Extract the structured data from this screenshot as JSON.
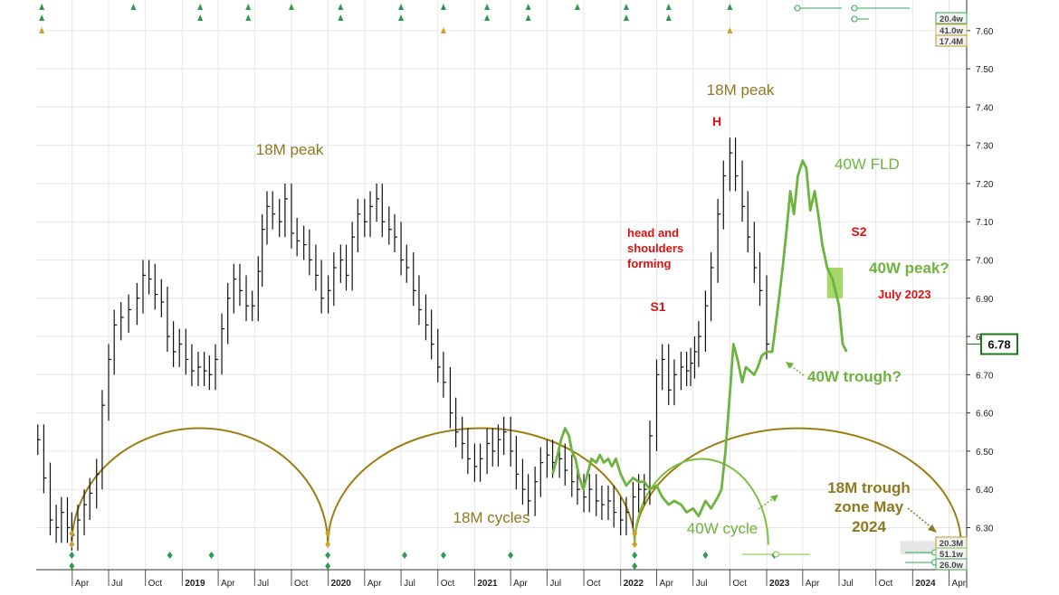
{
  "chart_data": {
    "type": "line",
    "y_axis": {
      "ticks": [
        6.3,
        6.4,
        6.5,
        6.6,
        6.7,
        6.8,
        6.9,
        7.0,
        7.1,
        7.2,
        7.3,
        7.4,
        7.5,
        7.6
      ],
      "tick_labels": [
        "6.30",
        "6.40",
        "6.50",
        "6.60",
        "6.70",
        "6.80",
        "6.90",
        "7.00",
        "7.10",
        "7.20",
        "7.30",
        "7.40",
        "7.50",
        "7.60"
      ],
      "ylim": [
        6.19,
        7.68
      ],
      "last_price_label": "6.78",
      "last_price": 6.78
    },
    "x_axis": {
      "xlim": [
        "2018-01-01",
        "2024-05-15"
      ],
      "ticks": [
        {
          "date": "2018-04-01",
          "label": "Apr"
        },
        {
          "date": "2018-07-01",
          "label": "Jul"
        },
        {
          "date": "2018-10-01",
          "label": "Oct"
        },
        {
          "date": "2019-01-01",
          "label": "2019"
        },
        {
          "date": "2019-04-01",
          "label": "Apr"
        },
        {
          "date": "2019-07-01",
          "label": "Jul"
        },
        {
          "date": "2019-10-01",
          "label": "Oct"
        },
        {
          "date": "2020-01-01",
          "label": "2020"
        },
        {
          "date": "2020-04-01",
          "label": "Apr"
        },
        {
          "date": "2020-07-01",
          "label": "Jul"
        },
        {
          "date": "2020-10-01",
          "label": "Oct"
        },
        {
          "date": "2021-01-01",
          "label": "2021"
        },
        {
          "date": "2021-04-01",
          "label": "Apr"
        },
        {
          "date": "2021-07-01",
          "label": "Jul"
        },
        {
          "date": "2021-10-01",
          "label": "Oct"
        },
        {
          "date": "2022-01-01",
          "label": "2022"
        },
        {
          "date": "2022-04-01",
          "label": "Apr"
        },
        {
          "date": "2022-07-01",
          "label": "Jul"
        },
        {
          "date": "2022-10-01",
          "label": "Oct"
        },
        {
          "date": "2023-01-01",
          "label": "2023"
        },
        {
          "date": "2023-04-01",
          "label": "Apr"
        },
        {
          "date": "2023-07-01",
          "label": "Jul"
        },
        {
          "date": "2023-10-01",
          "label": "Oct"
        },
        {
          "date": "2024-01-01",
          "label": "2024"
        },
        {
          "date": "2024-04-01",
          "label": "Apr"
        }
      ]
    },
    "series": [
      {
        "kind": "price_bars",
        "color": "#111111",
        "points": [
          [
            "2018-01-05",
            6.53
          ],
          [
            "2018-01-20",
            6.43
          ],
          [
            "2018-02-05",
            6.32
          ],
          [
            "2018-02-20",
            6.3
          ],
          [
            "2018-03-05",
            6.34
          ],
          [
            "2018-03-20",
            6.3
          ],
          [
            "2018-03-31",
            6.28
          ],
          [
            "2018-04-15",
            6.32
          ],
          [
            "2018-05-01",
            6.36
          ],
          [
            "2018-05-15",
            6.39
          ],
          [
            "2018-06-01",
            6.44
          ],
          [
            "2018-06-15",
            6.62
          ],
          [
            "2018-07-01",
            6.74
          ],
          [
            "2018-07-15",
            6.83
          ],
          [
            "2018-08-01",
            6.85
          ],
          [
            "2018-08-20",
            6.87
          ],
          [
            "2018-09-10",
            6.9
          ],
          [
            "2018-09-25",
            6.96
          ],
          [
            "2018-10-10",
            6.95
          ],
          [
            "2018-10-25",
            6.91
          ],
          [
            "2018-11-10",
            6.89
          ],
          [
            "2018-11-25",
            6.8
          ],
          [
            "2018-12-10",
            6.76
          ],
          [
            "2018-12-25",
            6.78
          ],
          [
            "2019-01-10",
            6.74
          ],
          [
            "2019-01-25",
            6.71
          ],
          [
            "2019-02-10",
            6.72
          ],
          [
            "2019-02-25",
            6.71
          ],
          [
            "2019-03-10",
            6.7
          ],
          [
            "2019-03-25",
            6.74
          ],
          [
            "2019-04-10",
            6.82
          ],
          [
            "2019-04-25",
            6.9
          ],
          [
            "2019-05-10",
            6.95
          ],
          [
            "2019-05-25",
            6.92
          ],
          [
            "2019-06-10",
            6.88
          ],
          [
            "2019-06-25",
            6.88
          ],
          [
            "2019-07-10",
            6.97
          ],
          [
            "2019-07-20",
            7.08
          ],
          [
            "2019-08-01",
            7.14
          ],
          [
            "2019-08-15",
            7.12
          ],
          [
            "2019-09-01",
            7.1
          ],
          [
            "2019-09-15",
            7.16
          ],
          [
            "2019-10-01",
            7.07
          ],
          [
            "2019-10-15",
            7.05
          ],
          [
            "2019-11-01",
            7.04
          ],
          [
            "2019-11-15",
            7.0
          ],
          [
            "2019-12-01",
            6.96
          ],
          [
            "2019-12-15",
            6.9
          ],
          [
            "2020-01-01",
            6.92
          ],
          [
            "2020-01-15",
            6.98
          ],
          [
            "2020-02-01",
            7.0
          ],
          [
            "2020-02-15",
            6.96
          ],
          [
            "2020-03-01",
            7.06
          ],
          [
            "2020-03-15",
            7.12
          ],
          [
            "2020-04-01",
            7.1
          ],
          [
            "2020-04-15",
            7.14
          ],
          [
            "2020-05-01",
            7.16
          ],
          [
            "2020-05-15",
            7.1
          ],
          [
            "2020-06-01",
            7.08
          ],
          [
            "2020-06-15",
            7.06
          ],
          [
            "2020-07-01",
            7.0
          ],
          [
            "2020-07-15",
            6.98
          ],
          [
            "2020-08-01",
            6.92
          ],
          [
            "2020-08-15",
            6.87
          ],
          [
            "2020-09-01",
            6.83
          ],
          [
            "2020-09-15",
            6.78
          ],
          [
            "2020-10-01",
            6.72
          ],
          [
            "2020-10-15",
            6.68
          ],
          [
            "2020-11-01",
            6.6
          ],
          [
            "2020-11-15",
            6.55
          ],
          [
            "2020-12-01",
            6.52
          ],
          [
            "2020-12-15",
            6.48
          ],
          [
            "2021-01-01",
            6.46
          ],
          [
            "2021-01-15",
            6.48
          ],
          [
            "2021-02-01",
            6.52
          ],
          [
            "2021-02-15",
            6.5
          ],
          [
            "2021-03-01",
            6.53
          ],
          [
            "2021-03-15",
            6.55
          ],
          [
            "2021-04-01",
            6.5
          ],
          [
            "2021-04-15",
            6.44
          ],
          [
            "2021-05-01",
            6.4
          ],
          [
            "2021-05-15",
            6.37
          ],
          [
            "2021-06-01",
            6.42
          ],
          [
            "2021-06-15",
            6.47
          ],
          [
            "2021-07-01",
            6.49
          ],
          [
            "2021-07-15",
            6.47
          ],
          [
            "2021-08-01",
            6.48
          ],
          [
            "2021-08-15",
            6.45
          ],
          [
            "2021-09-01",
            6.42
          ],
          [
            "2021-09-15",
            6.4
          ],
          [
            "2021-10-01",
            6.38
          ],
          [
            "2021-10-15",
            6.4
          ],
          [
            "2021-11-01",
            6.37
          ],
          [
            "2021-11-15",
            6.36
          ],
          [
            "2021-12-01",
            6.37
          ],
          [
            "2021-12-15",
            6.34
          ],
          [
            "2022-01-01",
            6.32
          ],
          [
            "2022-01-15",
            6.34
          ],
          [
            "2022-02-01",
            6.38
          ],
          [
            "2022-02-15",
            6.4
          ],
          [
            "2022-03-01",
            6.4
          ],
          [
            "2022-03-15",
            6.54
          ],
          [
            "2022-04-01",
            6.7
          ],
          [
            "2022-04-15",
            6.74
          ],
          [
            "2022-05-01",
            6.66
          ],
          [
            "2022-05-15",
            6.7
          ],
          [
            "2022-06-01",
            6.72
          ],
          [
            "2022-06-15",
            6.71
          ],
          [
            "2022-06-25",
            6.73
          ],
          [
            "2022-07-05",
            6.76
          ],
          [
            "2022-07-15",
            6.8
          ],
          [
            "2022-08-01",
            6.88
          ],
          [
            "2022-08-15",
            6.98
          ],
          [
            "2022-09-01",
            7.12
          ],
          [
            "2022-09-15",
            7.22
          ],
          [
            "2022-10-01",
            7.28
          ],
          [
            "2022-10-15",
            7.22
          ],
          [
            "2022-11-01",
            7.14
          ],
          [
            "2022-11-15",
            7.06
          ],
          [
            "2022-12-01",
            6.98
          ],
          [
            "2022-12-15",
            6.92
          ],
          [
            "2023-01-01",
            6.78
          ]
        ]
      },
      {
        "kind": "line",
        "name": "40W FLD",
        "color": "#6db33f",
        "points": [
          [
            "2021-07-15",
            6.44
          ],
          [
            "2021-07-25",
            6.48
          ],
          [
            "2021-08-05",
            6.53
          ],
          [
            "2021-08-15",
            6.56
          ],
          [
            "2021-08-25",
            6.54
          ],
          [
            "2021-09-01",
            6.5
          ],
          [
            "2021-09-10",
            6.48
          ],
          [
            "2021-09-20",
            6.43
          ],
          [
            "2021-09-30",
            6.4
          ],
          [
            "2021-10-10",
            6.44
          ],
          [
            "2021-10-20",
            6.48
          ],
          [
            "2021-11-01",
            6.47
          ],
          [
            "2021-11-10",
            6.49
          ],
          [
            "2021-11-20",
            6.47
          ],
          [
            "2021-12-01",
            6.48
          ],
          [
            "2021-12-10",
            6.46
          ],
          [
            "2021-12-20",
            6.48
          ],
          [
            "2022-01-01",
            6.44
          ],
          [
            "2022-01-15",
            6.41
          ],
          [
            "2022-02-01",
            6.43
          ],
          [
            "2022-02-15",
            6.42
          ],
          [
            "2022-03-01",
            6.42
          ],
          [
            "2022-03-15",
            6.4
          ],
          [
            "2022-04-01",
            6.41
          ],
          [
            "2022-04-15",
            6.38
          ],
          [
            "2022-05-01",
            6.36
          ],
          [
            "2022-05-15",
            6.37
          ],
          [
            "2022-06-01",
            6.36
          ],
          [
            "2022-06-15",
            6.34
          ],
          [
            "2022-07-01",
            6.35
          ],
          [
            "2022-07-15",
            6.33
          ],
          [
            "2022-08-01",
            6.37
          ],
          [
            "2022-08-15",
            6.35
          ],
          [
            "2022-09-01",
            6.38
          ],
          [
            "2022-09-10",
            6.4
          ],
          [
            "2022-09-20",
            6.5
          ],
          [
            "2022-10-01",
            6.65
          ],
          [
            "2022-10-10",
            6.78
          ],
          [
            "2022-10-20",
            6.74
          ],
          [
            "2022-11-01",
            6.68
          ],
          [
            "2022-11-10",
            6.72
          ],
          [
            "2022-11-20",
            6.71
          ],
          [
            "2022-12-01",
            6.7
          ],
          [
            "2022-12-10",
            6.72
          ],
          [
            "2022-12-20",
            6.75
          ],
          [
            "2023-01-01",
            6.76
          ],
          [
            "2023-01-15",
            6.76
          ],
          [
            "2023-02-01",
            6.9
          ],
          [
            "2023-02-10",
            6.98
          ],
          [
            "2023-02-20",
            7.08
          ],
          [
            "2023-03-01",
            7.18
          ],
          [
            "2023-03-10",
            7.12
          ],
          [
            "2023-03-20",
            7.22
          ],
          [
            "2023-04-01",
            7.26
          ],
          [
            "2023-04-10",
            7.24
          ],
          [
            "2023-04-20",
            7.13
          ],
          [
            "2023-05-01",
            7.18
          ],
          [
            "2023-05-10",
            7.12
          ],
          [
            "2023-05-20",
            7.04
          ],
          [
            "2023-06-01",
            6.98
          ],
          [
            "2023-06-15",
            6.95
          ],
          [
            "2023-07-01",
            6.88
          ],
          [
            "2023-07-10",
            6.78
          ],
          [
            "2023-07-20",
            6.76
          ]
        ]
      }
    ],
    "cycles": [
      {
        "name": "18M cycles",
        "color": "#9c7d10",
        "arcs": [
          [
            "2018-03-31",
            "2019-12-31"
          ],
          [
            "2019-12-31",
            "2022-02-05"
          ],
          [
            "2022-02-05",
            "2024-05-01"
          ]
        ],
        "apex": 6.56
      },
      {
        "name": "40W cycle",
        "color": "#7ac142",
        "arcs": [
          [
            "2022-02-05",
            "2023-01-05"
          ]
        ],
        "apex": 6.48
      }
    ],
    "highlight_zones": [
      {
        "date_start": "2023-06-01",
        "date_end": "2023-07-10",
        "y_low": 6.9,
        "y_high": 6.98,
        "color": "#9bd45a"
      },
      {
        "date_start": "2023-12-01",
        "date_end": "2024-04-30",
        "y_low": 6.23,
        "y_high": 6.265,
        "color": "#e3e3e3"
      }
    ],
    "right_badges": [
      {
        "label": "20.4w",
        "color": "#3aa655"
      },
      {
        "label": "41.0w",
        "color": "#d4b13a"
      },
      {
        "label": "17.4M",
        "color": "#b89a2e"
      },
      {
        "label": "20.3M",
        "color": "#b89a2e"
      },
      {
        "label": "51.1w",
        "color": "#7ac142"
      },
      {
        "label": "26.0w",
        "color": "#3aa655"
      }
    ],
    "annotations": {
      "peak_18m_2019": "18M peak",
      "peak_18m_2022": "18M peak",
      "h_label": "H",
      "s1_label": "S1",
      "s2_label": "S2",
      "hs_note_line1": "head and",
      "hs_note_line2": "shoulders",
      "hs_note_line3": "forming",
      "fld_label": "40W FLD",
      "peak_40w": "40W peak?",
      "peak_40w_date": "July 2023",
      "trough_40w": "40W trough?",
      "cycles_18m": "18M cycles",
      "cycle_40w": "40W cycle",
      "trough_zone_line1": "18M trough",
      "trough_zone_line2": "zone May",
      "trough_zone_line3": "2024"
    },
    "colors": {
      "price": "#111111",
      "fld": "#6db33f",
      "cycle_18m": "#9c7d10",
      "cycle_40w": "#7ac142",
      "annotation_red": "#e01010",
      "annotation_gold": "#8c7a20",
      "annotation_green": "#6db33f"
    },
    "title": "",
    "xlabel": "",
    "ylabel": ""
  }
}
